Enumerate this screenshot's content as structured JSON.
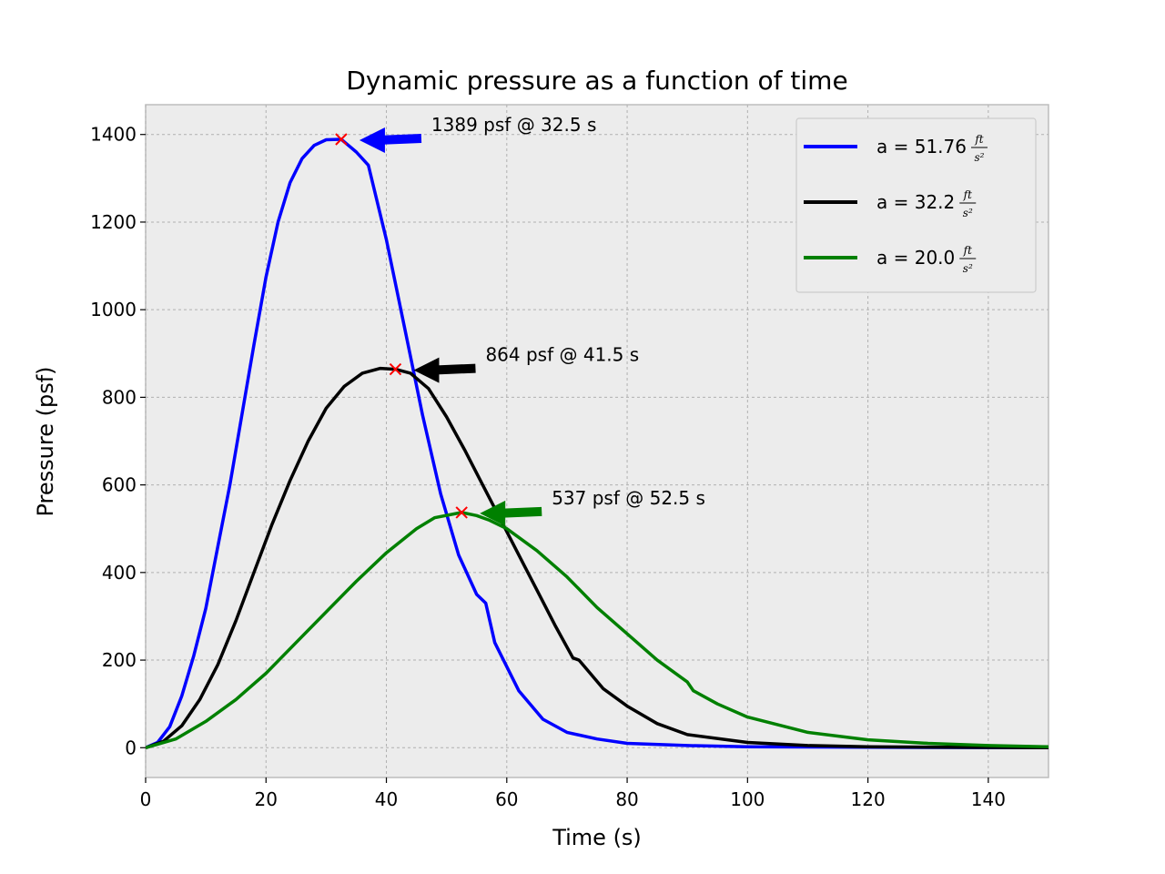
{
  "chart_data": {
    "type": "line",
    "title": "Dynamic pressure as a function of time",
    "xlabel": "Time (s)",
    "ylabel": "Pressure (psf)",
    "xlim": [
      0,
      150
    ],
    "ylim": [
      -68,
      1468
    ],
    "xticks": [
      0,
      20,
      40,
      60,
      80,
      100,
      120,
      140
    ],
    "yticks": [
      0,
      200,
      400,
      600,
      800,
      1000,
      1200,
      1400
    ],
    "grid": true,
    "legend_position": "upper-right",
    "series": [
      {
        "name": "a = 51.76",
        "unit_numerator": "ft",
        "unit_denominator": "s²",
        "color": "#0000ff",
        "x": [
          0,
          2,
          4,
          6,
          8,
          10,
          12,
          14,
          16,
          18,
          20,
          22,
          24,
          26,
          28,
          30,
          32.5,
          35,
          37,
          40,
          43,
          46,
          49,
          52,
          55,
          56.5,
          58,
          62,
          66,
          70,
          75,
          80,
          90,
          100,
          120,
          150
        ],
        "y": [
          0,
          12,
          48,
          118,
          210,
          318,
          460,
          600,
          760,
          920,
          1075,
          1200,
          1290,
          1345,
          1375,
          1388,
          1389,
          1360,
          1330,
          1160,
          960,
          760,
          580,
          440,
          350,
          330,
          240,
          130,
          65,
          35,
          20,
          10,
          5,
          2,
          1,
          0
        ]
      },
      {
        "name": "a = 32.2",
        "unit_numerator": "ft",
        "unit_denominator": "s²",
        "color": "#000000",
        "x": [
          0,
          3,
          6,
          9,
          12,
          15,
          18,
          21,
          24,
          27,
          30,
          33,
          36,
          39,
          41.5,
          44,
          47,
          50,
          53,
          56,
          59,
          62,
          65,
          68,
          71,
          72,
          76,
          80,
          85,
          90,
          100,
          110,
          120,
          150
        ],
        "y": [
          0,
          15,
          50,
          110,
          190,
          290,
          400,
          510,
          610,
          700,
          775,
          825,
          855,
          866,
          864,
          855,
          820,
          755,
          680,
          600,
          520,
          440,
          360,
          280,
          205,
          200,
          135,
          95,
          55,
          30,
          12,
          5,
          2,
          0
        ]
      },
      {
        "name": "a = 20.0",
        "unit_numerator": "ft",
        "unit_denominator": "s²",
        "color": "#008000",
        "x": [
          0,
          5,
          10,
          15,
          20,
          25,
          30,
          35,
          40,
          45,
          48,
          52.5,
          55,
          57,
          60,
          65,
          70,
          75,
          80,
          85,
          90,
          91,
          95,
          100,
          110,
          120,
          130,
          140,
          150
        ],
        "y": [
          0,
          20,
          60,
          110,
          170,
          240,
          310,
          380,
          445,
          500,
          525,
          537,
          530,
          520,
          500,
          450,
          390,
          320,
          260,
          200,
          150,
          130,
          100,
          70,
          35,
          18,
          10,
          5,
          2
        ]
      }
    ],
    "annotations": [
      {
        "text": "1389 psf @ 32.5 s",
        "x": 32.5,
        "y": 1389,
        "color": "#0000ff"
      },
      {
        "text": "864 psf @ 41.5 s",
        "x": 41.5,
        "y": 864,
        "color": "#000000"
      },
      {
        "text": "537 psf @ 52.5 s",
        "x": 52.5,
        "y": 537,
        "color": "#008000"
      }
    ]
  }
}
